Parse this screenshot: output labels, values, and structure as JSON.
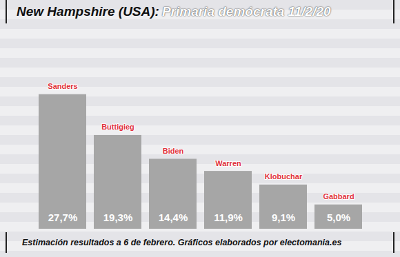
{
  "chart_data": {
    "type": "bar",
    "title": "New Hampshire (USA):",
    "subtitle": "Primaria demócrata 11/2/20",
    "caption": "Estimación resultados a 6 de febrero. Gráficos elaborados por electomania.es",
    "categories": [
      "Sanders",
      "Buttigieg",
      "Biden",
      "Warren",
      "Klobuchar",
      "Gabbard"
    ],
    "values": [
      27.7,
      19.3,
      14.4,
      11.9,
      9.1,
      5.0
    ],
    "value_labels": [
      "27,7%",
      "19,3%",
      "14,4%",
      "11,9%",
      "9,1%",
      "5,0%"
    ],
    "color": "#a6a6a6",
    "ylim": [
      0,
      40
    ],
    "data_labels": true
  }
}
